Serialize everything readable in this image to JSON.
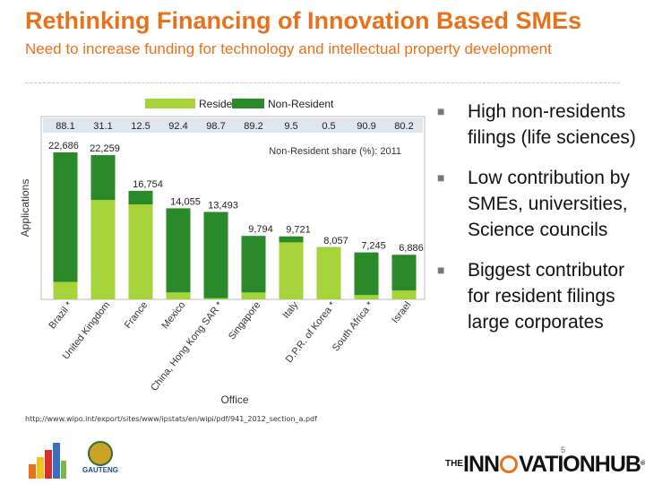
{
  "slide": {
    "title": "Rethinking Financing of Innovation Based SMEs",
    "subtitle": "Need to increase funding for technology and intellectual property development",
    "bullets": [
      "High non-residents filings (life sciences)",
      "Low contribution by SMEs, universities, Science councils",
      "Biggest contributor for resident filings large corporates"
    ],
    "source": "http://www.wipo.int/export/sites/www/ipstats/en/wipi/pdf/941_2012_section_a.pdf",
    "slide_number": "5",
    "logos": {
      "bars_icon": "bar-chart-logo-icon",
      "gauteng_label": "GAUTENG",
      "hub_prefix": "THE",
      "hub_part1": "INN",
      "hub_part2": "VATIONHUB",
      "hub_mark": "®"
    }
  },
  "colors": {
    "title": "#e8711a",
    "resident": "#a6d33a",
    "non_resident": "#2a8a2a"
  },
  "chart_data": {
    "type": "bar",
    "stacked": true,
    "categories": [
      "Brazil",
      "United Kingdom",
      "France",
      "Mexico",
      "China, Hong Kong SAR",
      "Singapore",
      "Italy",
      "D.P.R. of Korea",
      "South Africa",
      "Israel"
    ],
    "category_markers": [
      "*",
      "",
      "",
      "",
      "*",
      "",
      "",
      "*",
      "*",
      ""
    ],
    "totals": [
      22686,
      22259,
      16754,
      14055,
      13493,
      9794,
      9721,
      8057,
      7245,
      6886
    ],
    "total_labels": [
      "22,686",
      "22,259",
      "16,754",
      "14,055",
      "13,493",
      "9,794",
      "9,721",
      "8,057",
      "7,245",
      "6,886"
    ],
    "non_resident_share": [
      "88.1",
      "31.1",
      "12.5",
      "92.4",
      "98.7",
      "89.2",
      "9.5",
      "0.5",
      "90.9",
      "80.2"
    ],
    "series": [
      {
        "name": "Resident",
        "color": "#a6d33a",
        "values": [
          2700,
          15337,
          14660,
          1068,
          175,
          1058,
          8798,
          8017,
          660,
          1364
        ]
      },
      {
        "name": "Non-Resident",
        "color": "#2a8a2a",
        "values": [
          19986,
          6922,
          2094,
          12987,
          13318,
          8736,
          923,
          40,
          6585,
          5522
        ]
      }
    ],
    "xlabel": "Office",
    "ylabel": "Applications",
    "share_label": "Non-Resident share (%): 2011",
    "ylim": [
      0,
      25000
    ],
    "legend": "top"
  }
}
